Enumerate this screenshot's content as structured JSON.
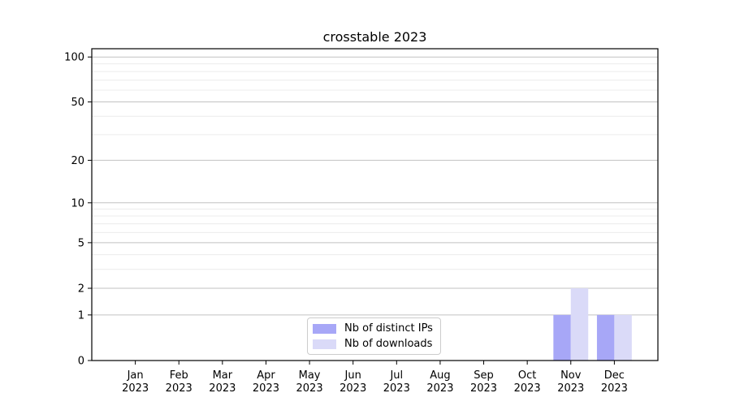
{
  "chart_data": {
    "type": "bar",
    "title": "crosstable 2023",
    "categories": [
      "Jan",
      "Feb",
      "Mar",
      "Apr",
      "May",
      "Jun",
      "Jul",
      "Aug",
      "Sep",
      "Oct",
      "Nov",
      "Dec"
    ],
    "x_tick_second_line": "2023",
    "series": [
      {
        "name": "Nb of distinct IPs",
        "color": "#a7a7f7",
        "values": [
          0,
          0,
          0,
          0,
          0,
          0,
          0,
          0,
          0,
          0,
          1,
          1
        ]
      },
      {
        "name": "Nb of downloads",
        "color": "#dadaf8",
        "values": [
          0,
          0,
          0,
          0,
          0,
          0,
          0,
          0,
          0,
          0,
          2,
          1
        ]
      }
    ],
    "y_scale": "log1p",
    "y_ticks": [
      0,
      1,
      2,
      5,
      10,
      20,
      50,
      100
    ],
    "y_minor_ticks": [
      3,
      4,
      6,
      7,
      8,
      9,
      30,
      40,
      60,
      70,
      80,
      90
    ],
    "ylim": [
      0,
      114
    ],
    "grid": true,
    "legend_position": "lower center"
  }
}
